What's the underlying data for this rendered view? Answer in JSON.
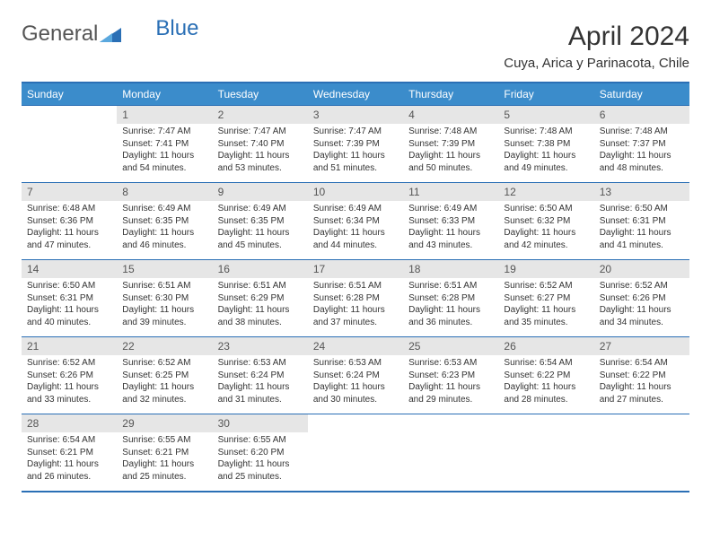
{
  "logo": {
    "general": "General",
    "blue": "Blue"
  },
  "title": "April 2024",
  "location": "Cuya, Arica y Parinacota, Chile",
  "colors": {
    "header_bg": "#3b8ccb",
    "border": "#2a6fb5",
    "daynum_bg": "#e6e6e6",
    "text": "#333333"
  },
  "day_headers": [
    "Sunday",
    "Monday",
    "Tuesday",
    "Wednesday",
    "Thursday",
    "Friday",
    "Saturday"
  ],
  "weeks": [
    [
      null,
      {
        "n": "1",
        "sr": "7:47 AM",
        "ss": "7:41 PM",
        "dl": "11 hours and 54 minutes."
      },
      {
        "n": "2",
        "sr": "7:47 AM",
        "ss": "7:40 PM",
        "dl": "11 hours and 53 minutes."
      },
      {
        "n": "3",
        "sr": "7:47 AM",
        "ss": "7:39 PM",
        "dl": "11 hours and 51 minutes."
      },
      {
        "n": "4",
        "sr": "7:48 AM",
        "ss": "7:39 PM",
        "dl": "11 hours and 50 minutes."
      },
      {
        "n": "5",
        "sr": "7:48 AM",
        "ss": "7:38 PM",
        "dl": "11 hours and 49 minutes."
      },
      {
        "n": "6",
        "sr": "7:48 AM",
        "ss": "7:37 PM",
        "dl": "11 hours and 48 minutes."
      }
    ],
    [
      {
        "n": "7",
        "sr": "6:48 AM",
        "ss": "6:36 PM",
        "dl": "11 hours and 47 minutes."
      },
      {
        "n": "8",
        "sr": "6:49 AM",
        "ss": "6:35 PM",
        "dl": "11 hours and 46 minutes."
      },
      {
        "n": "9",
        "sr": "6:49 AM",
        "ss": "6:35 PM",
        "dl": "11 hours and 45 minutes."
      },
      {
        "n": "10",
        "sr": "6:49 AM",
        "ss": "6:34 PM",
        "dl": "11 hours and 44 minutes."
      },
      {
        "n": "11",
        "sr": "6:49 AM",
        "ss": "6:33 PM",
        "dl": "11 hours and 43 minutes."
      },
      {
        "n": "12",
        "sr": "6:50 AM",
        "ss": "6:32 PM",
        "dl": "11 hours and 42 minutes."
      },
      {
        "n": "13",
        "sr": "6:50 AM",
        "ss": "6:31 PM",
        "dl": "11 hours and 41 minutes."
      }
    ],
    [
      {
        "n": "14",
        "sr": "6:50 AM",
        "ss": "6:31 PM",
        "dl": "11 hours and 40 minutes."
      },
      {
        "n": "15",
        "sr": "6:51 AM",
        "ss": "6:30 PM",
        "dl": "11 hours and 39 minutes."
      },
      {
        "n": "16",
        "sr": "6:51 AM",
        "ss": "6:29 PM",
        "dl": "11 hours and 38 minutes."
      },
      {
        "n": "17",
        "sr": "6:51 AM",
        "ss": "6:28 PM",
        "dl": "11 hours and 37 minutes."
      },
      {
        "n": "18",
        "sr": "6:51 AM",
        "ss": "6:28 PM",
        "dl": "11 hours and 36 minutes."
      },
      {
        "n": "19",
        "sr": "6:52 AM",
        "ss": "6:27 PM",
        "dl": "11 hours and 35 minutes."
      },
      {
        "n": "20",
        "sr": "6:52 AM",
        "ss": "6:26 PM",
        "dl": "11 hours and 34 minutes."
      }
    ],
    [
      {
        "n": "21",
        "sr": "6:52 AM",
        "ss": "6:26 PM",
        "dl": "11 hours and 33 minutes."
      },
      {
        "n": "22",
        "sr": "6:52 AM",
        "ss": "6:25 PM",
        "dl": "11 hours and 32 minutes."
      },
      {
        "n": "23",
        "sr": "6:53 AM",
        "ss": "6:24 PM",
        "dl": "11 hours and 31 minutes."
      },
      {
        "n": "24",
        "sr": "6:53 AM",
        "ss": "6:24 PM",
        "dl": "11 hours and 30 minutes."
      },
      {
        "n": "25",
        "sr": "6:53 AM",
        "ss": "6:23 PM",
        "dl": "11 hours and 29 minutes."
      },
      {
        "n": "26",
        "sr": "6:54 AM",
        "ss": "6:22 PM",
        "dl": "11 hours and 28 minutes."
      },
      {
        "n": "27",
        "sr": "6:54 AM",
        "ss": "6:22 PM",
        "dl": "11 hours and 27 minutes."
      }
    ],
    [
      {
        "n": "28",
        "sr": "6:54 AM",
        "ss": "6:21 PM",
        "dl": "11 hours and 26 minutes."
      },
      {
        "n": "29",
        "sr": "6:55 AM",
        "ss": "6:21 PM",
        "dl": "11 hours and 25 minutes."
      },
      {
        "n": "30",
        "sr": "6:55 AM",
        "ss": "6:20 PM",
        "dl": "11 hours and 25 minutes."
      },
      null,
      null,
      null,
      null
    ]
  ],
  "labels": {
    "sunrise": "Sunrise:",
    "sunset": "Sunset:",
    "daylight": "Daylight:"
  }
}
